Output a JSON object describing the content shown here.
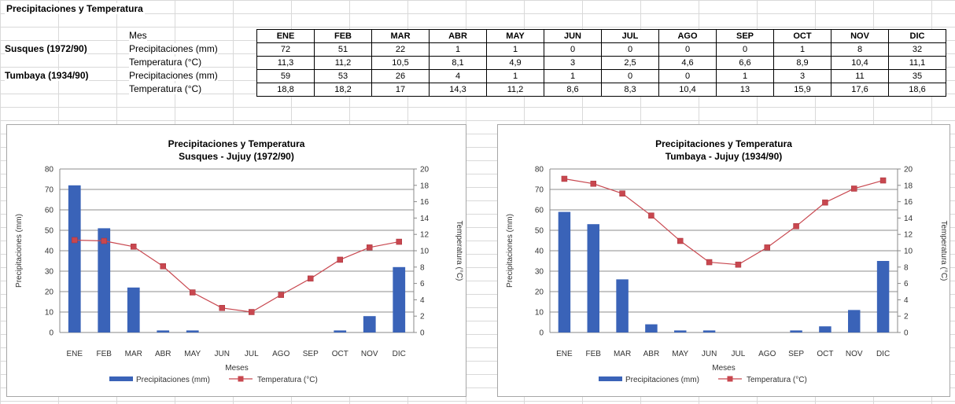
{
  "sheet": {
    "title": "Precipitaciones y Temperatura",
    "mes_label": "Mes",
    "stations": [
      {
        "name": "Susques (1972/90)",
        "rows": [
          "Precipitaciones (mm)",
          "Temperatura (°C)"
        ]
      },
      {
        "name": "Tumbaya (1934/90)",
        "rows": [
          "Precipitaciones (mm)",
          "Temperatura (°C)"
        ]
      }
    ],
    "months": [
      "ENE",
      "FEB",
      "MAR",
      "ABR",
      "MAY",
      "JUN",
      "JUL",
      "AGO",
      "SEP",
      "OCT",
      "NOV",
      "DIC"
    ],
    "table": [
      [
        "72",
        "51",
        "22",
        "1",
        "1",
        "0",
        "0",
        "0",
        "0",
        "1",
        "8",
        "32"
      ],
      [
        "11,3",
        "11,2",
        "10,5",
        "8,1",
        "4,9",
        "3",
        "2,5",
        "4,6",
        "6,6",
        "8,9",
        "10,4",
        "11,1"
      ],
      [
        "59",
        "53",
        "26",
        "4",
        "1",
        "1",
        "0",
        "0",
        "1",
        "3",
        "11",
        "35"
      ],
      [
        "18,8",
        "18,2",
        "17",
        "14,3",
        "11,2",
        "8,6",
        "8,3",
        "10,4",
        "13",
        "15,9",
        "17,6",
        "18,6"
      ]
    ]
  },
  "chart_data": [
    {
      "type": "bar",
      "title": "Precipitaciones y Temperatura",
      "subtitle": "Susques - Jujuy (1972/90)",
      "xlabel": "Meses",
      "ylabel": "Precipitaciones (mm)",
      "y2label": "Temperatura (°C)",
      "categories": [
        "ENE",
        "FEB",
        "MAR",
        "ABR",
        "MAY",
        "JUN",
        "JUL",
        "AGO",
        "SEP",
        "OCT",
        "NOV",
        "DIC"
      ],
      "ylim": [
        0,
        80
      ],
      "yticks": [
        0,
        10,
        20,
        30,
        40,
        50,
        60,
        70,
        80
      ],
      "y2lim": [
        0,
        20
      ],
      "y2ticks": [
        0,
        2,
        4,
        6,
        8,
        10,
        12,
        14,
        16,
        18,
        20
      ],
      "series": [
        {
          "name": "Precipitaciones (mm)",
          "kind": "bar",
          "color": "#3a63b8",
          "values": [
            72,
            51,
            22,
            1,
            1,
            0,
            0,
            0,
            0,
            1,
            8,
            32
          ]
        },
        {
          "name": "Temperatura (°C)",
          "kind": "line",
          "axis": "right",
          "color": "#c8474f",
          "values": [
            11.3,
            11.2,
            10.5,
            8.1,
            4.9,
            3,
            2.5,
            4.6,
            6.6,
            8.9,
            10.4,
            11.1
          ]
        }
      ],
      "legend": "bottom",
      "grid": true
    },
    {
      "type": "bar",
      "title": "Precipitaciones y Temperatura",
      "subtitle": "Tumbaya - Jujuy (1934/90)",
      "xlabel": "Meses",
      "ylabel": "Precipitaciones (mm)",
      "y2label": "Temperatura (°C)",
      "categories": [
        "ENE",
        "FEB",
        "MAR",
        "ABR",
        "MAY",
        "JUN",
        "JUL",
        "AGO",
        "SEP",
        "OCT",
        "NOV",
        "DIC"
      ],
      "ylim": [
        0,
        80
      ],
      "yticks": [
        0,
        10,
        20,
        30,
        40,
        50,
        60,
        70,
        80
      ],
      "y2lim": [
        0,
        20
      ],
      "y2ticks": [
        0,
        2,
        4,
        6,
        8,
        10,
        12,
        14,
        16,
        18,
        20
      ],
      "series": [
        {
          "name": "Precipitaciones (mm)",
          "kind": "bar",
          "color": "#3a63b8",
          "values": [
            59,
            53,
            26,
            4,
            1,
            1,
            0,
            0,
            1,
            3,
            11,
            35
          ]
        },
        {
          "name": "Temperatura (°C)",
          "kind": "line",
          "axis": "right",
          "color": "#c8474f",
          "values": [
            18.8,
            18.2,
            17,
            14.3,
            11.2,
            8.6,
            8.3,
            10.4,
            13,
            15.9,
            17.6,
            18.6
          ]
        }
      ],
      "legend": "bottom",
      "grid": true
    }
  ]
}
